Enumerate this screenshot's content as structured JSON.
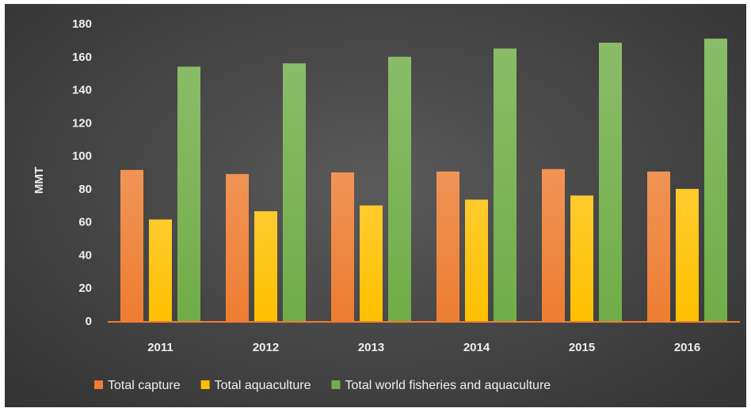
{
  "chart_data": {
    "type": "bar",
    "title": "",
    "xlabel": "",
    "ylabel": "MMT",
    "ylim": [
      0,
      180
    ],
    "yticks": [
      0,
      20,
      40,
      60,
      80,
      100,
      120,
      140,
      160,
      180
    ],
    "grid": false,
    "legend_position": "bottom",
    "categories": [
      "2011",
      "2012",
      "2013",
      "2014",
      "2015",
      "2016"
    ],
    "series": [
      {
        "name": "Total capture",
        "color": "#ed7d31",
        "values": [
          91.5,
          89.0,
          90.0,
          90.5,
          92.0,
          90.5
        ]
      },
      {
        "name": "Total aquaculture",
        "color": "#ffc000",
        "values": [
          61.5,
          66.5,
          70.0,
          73.5,
          76.0,
          80.0
        ]
      },
      {
        "name": "Total world fisheries and aquaculture",
        "color": "#70ad47",
        "values": [
          154.0,
          156.0,
          160.0,
          165.0,
          168.5,
          171.0
        ]
      }
    ]
  }
}
